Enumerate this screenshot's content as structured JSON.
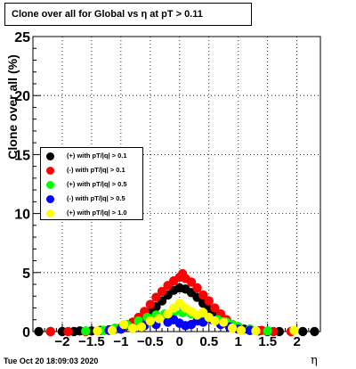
{
  "title": "Clone  over all for Global vs   η at pT > 0.11",
  "ylabel": "Clone  over all (%)",
  "xlabel": "η",
  "timestamp": "Tue Oct 20 18:09:03 2020",
  "chart_data": {
    "type": "scatter",
    "title": "Clone  over all for Global vs   η at pT > 0.11",
    "xlabel": "η",
    "ylabel": "Clone  over all (%)",
    "xlim": [
      -2.5,
      2.4
    ],
    "ylim": [
      0,
      25
    ],
    "x_ticks": [
      "−2",
      "−1.5",
      "−1",
      "−0.5",
      "0",
      "0.5",
      "1",
      "1.5",
      "2"
    ],
    "x_tick_values": [
      -2,
      -1.5,
      -1,
      -0.5,
      0,
      0.5,
      1,
      1.5,
      2
    ],
    "y_ticks": [
      "0",
      "5",
      "10",
      "15",
      "20",
      "25"
    ],
    "y_tick_values": [
      0,
      5,
      10,
      15,
      20,
      25
    ],
    "grid": true,
    "legend_position": "left-middle",
    "series": [
      {
        "name": "(+) with pT/|q| > 0.1",
        "color": "#000000",
        "points": [
          [
            -2.4,
            0
          ],
          [
            -2.2,
            0
          ],
          [
            -2.0,
            0
          ],
          [
            -1.8,
            0
          ],
          [
            -1.7,
            0.05
          ],
          [
            -1.5,
            0.05
          ],
          [
            -1.35,
            0.1
          ],
          [
            -1.2,
            0.15
          ],
          [
            -1.1,
            0.2
          ],
          [
            -1.0,
            0.3
          ],
          [
            -0.9,
            0.5
          ],
          [
            -0.8,
            0.7
          ],
          [
            -0.7,
            0.9
          ],
          [
            -0.6,
            1.2
          ],
          [
            -0.5,
            1.6
          ],
          [
            -0.4,
            2.1
          ],
          [
            -0.3,
            2.6
          ],
          [
            -0.2,
            3.1
          ],
          [
            -0.1,
            3.5
          ],
          [
            0.0,
            3.7
          ],
          [
            0.1,
            3.6
          ],
          [
            0.2,
            3.3
          ],
          [
            0.3,
            2.9
          ],
          [
            0.4,
            2.4
          ],
          [
            0.5,
            1.9
          ],
          [
            0.6,
            1.4
          ],
          [
            0.7,
            1.0
          ],
          [
            0.8,
            0.7
          ],
          [
            0.9,
            0.5
          ],
          [
            1.0,
            0.3
          ],
          [
            1.1,
            0.2
          ],
          [
            1.2,
            0.1
          ],
          [
            1.35,
            0.05
          ],
          [
            1.5,
            0
          ],
          [
            1.7,
            0
          ],
          [
            1.9,
            0
          ],
          [
            2.1,
            0
          ],
          [
            2.3,
            0
          ]
        ]
      },
      {
        "name": "(-) with pT/|q| > 0.1",
        "color": "#ff0000",
        "points": [
          [
            -2.2,
            0
          ],
          [
            -1.9,
            0
          ],
          [
            -1.6,
            0
          ],
          [
            -1.3,
            0.1
          ],
          [
            -1.1,
            0.2
          ],
          [
            -0.95,
            0.4
          ],
          [
            -0.8,
            0.8
          ],
          [
            -0.7,
            1.2
          ],
          [
            -0.6,
            1.7
          ],
          [
            -0.5,
            2.3
          ],
          [
            -0.4,
            2.9
          ],
          [
            -0.3,
            3.4
          ],
          [
            -0.2,
            3.9
          ],
          [
            -0.1,
            4.3
          ],
          [
            0.0,
            4.6
          ],
          [
            0.05,
            4.9
          ],
          [
            0.1,
            4.5
          ],
          [
            0.2,
            4.2
          ],
          [
            0.3,
            3.7
          ],
          [
            0.4,
            3.1
          ],
          [
            0.5,
            2.6
          ],
          [
            0.6,
            2.0
          ],
          [
            0.7,
            1.5
          ],
          [
            0.8,
            1.0
          ],
          [
            0.9,
            0.6
          ],
          [
            1.0,
            0.4
          ],
          [
            1.2,
            0.2
          ],
          [
            1.4,
            0.1
          ],
          [
            1.6,
            0
          ],
          [
            1.9,
            0
          ]
        ]
      },
      {
        "name": "(+) with pT/|q| > 0.5",
        "color": "#00ff00",
        "points": [
          [
            -1.6,
            0.05
          ],
          [
            -1.3,
            0.1
          ],
          [
            -1.1,
            0.3
          ],
          [
            -0.9,
            0.6
          ],
          [
            -0.7,
            0.9
          ],
          [
            -0.55,
            1.2
          ],
          [
            -0.4,
            1.4
          ],
          [
            -0.25,
            1.5
          ],
          [
            -0.1,
            1.6
          ],
          [
            0.05,
            1.6
          ],
          [
            0.2,
            1.5
          ],
          [
            0.35,
            1.3
          ],
          [
            0.5,
            1.1
          ],
          [
            0.65,
            1.0
          ],
          [
            0.8,
            0.8
          ],
          [
            0.9,
            0.6
          ],
          [
            1.0,
            0.4
          ],
          [
            1.2,
            0.2
          ],
          [
            1.5,
            0.05
          ]
        ]
      },
      {
        "name": "(-) with pT/|q| > 0.5",
        "color": "#0000ff",
        "points": [
          [
            -1.2,
            0.1
          ],
          [
            -1.0,
            0.2
          ],
          [
            -0.8,
            0.3
          ],
          [
            -0.6,
            0.5
          ],
          [
            -0.4,
            0.6
          ],
          [
            -0.2,
            0.8
          ],
          [
            -0.1,
            1.0
          ],
          [
            0.0,
            0.7
          ],
          [
            0.1,
            0.5
          ],
          [
            0.2,
            0.6
          ],
          [
            0.3,
            0.9
          ],
          [
            0.4,
            0.8
          ],
          [
            0.55,
            1.0
          ],
          [
            0.7,
            0.6
          ],
          [
            0.85,
            0.4
          ],
          [
            1.0,
            0.2
          ],
          [
            1.2,
            0.1
          ]
        ]
      },
      {
        "name": "(+) with pT/|q| > 1.0",
        "color": "#ffff00",
        "points": [
          [
            -1.4,
            0.05
          ],
          [
            -1.15,
            0.1
          ],
          [
            -0.95,
            0.6
          ],
          [
            -0.8,
            0.3
          ],
          [
            -0.65,
            0.4
          ],
          [
            -0.5,
            0.9
          ],
          [
            -0.35,
            1.1
          ],
          [
            -0.2,
            1.5
          ],
          [
            -0.1,
            2.0
          ],
          [
            0.0,
            2.4
          ],
          [
            0.1,
            2.0
          ],
          [
            0.2,
            1.7
          ],
          [
            0.3,
            1.4
          ],
          [
            0.4,
            1.6
          ],
          [
            0.5,
            1.2
          ],
          [
            0.6,
            0.9
          ],
          [
            0.75,
            0.8
          ],
          [
            0.9,
            0.3
          ],
          [
            1.05,
            0.1
          ],
          [
            1.3,
            0.05
          ],
          [
            1.95,
            0.1
          ]
        ]
      }
    ]
  }
}
